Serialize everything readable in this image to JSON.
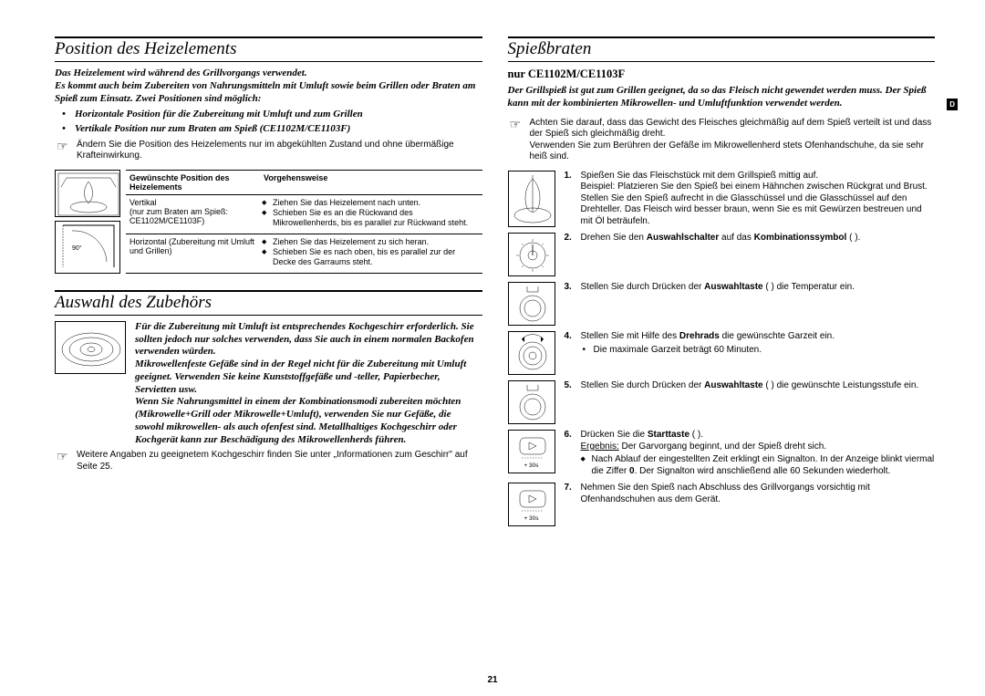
{
  "pageNumber": "21",
  "langBadge": "D",
  "left": {
    "section1": {
      "title": "Position des Heizelements",
      "intro": "Das Heizelement wird während des Grillvorgangs verwendet.\nEs kommt auch beim Zubereiten von Nahrungsmitteln mit Umluft sowie beim Grillen oder Braten am Spieß zum Einsatz. Zwei Positionen sind möglich:",
      "bullets": [
        "Horizontale Position für die Zubereitung mit Umluft und zum Grillen",
        "Vertikale Position nur zum Braten am Spieß (CE1102M/CE1103F)"
      ],
      "handNote": "Ändern Sie die Position des Heizelements nur im abgekühlten Zustand und ohne übermäßige Krafteinwirkung.",
      "table": {
        "headers": [
          "Gewünschte Position des Heizelements",
          "Vorgehensweise"
        ],
        "rows": [
          {
            "c1": "Vertikal\n(nur zum Braten am Spieß: CE1102M/CE1103F)",
            "c2": [
              "Ziehen Sie das Heizelement nach unten.",
              "Schieben Sie es an die Rückwand des Mikrowellenherds, bis es parallel zur Rückwand steht."
            ]
          },
          {
            "c1": "Horizontal (Zubereitung mit Umluft und Grillen)",
            "c2": [
              "Ziehen Sie das Heizelement zu sich heran.",
              "Schieben Sie es nach oben, bis es parallel zur der Decke des Garraums steht."
            ]
          }
        ]
      },
      "ill_angle": "90°"
    },
    "section2": {
      "title": "Auswahl des Zubehörs",
      "text": "Für die Zubereitung mit Umluft ist entsprechendes Kochgeschirr erforderlich. Sie sollten jedoch nur solches verwenden, dass Sie auch in einem normalen Backofen verwenden würden.\nMikrowellenfeste Gefäße sind in der Regel nicht für die Zubereitung mit Umluft geeignet. Verwenden Sie keine Kunststoffgefäße und -teller, Papierbecher, Servietten usw.\nWenn Sie Nahrungsmittel in einem der Kombinationsmodi zubereiten möchten (Mikrowelle+Grill oder Mikrowelle+Umluft), verwenden Sie nur Gefäße, die sowohl mikrowellen- als auch ofenfest sind. Metallhaltiges Kochgeschirr oder Kochgerät kann zur Beschädigung des Mikrowellenherds führen.",
      "handNote": "Weitere Angaben zu geeignetem Kochgeschirr finden Sie unter „Informationen zum Geschirr\" auf Seite 25."
    }
  },
  "right": {
    "title": "Spießbraten",
    "subtitle": "nur CE1102M/CE1103F",
    "intro": "Der Grillspieß ist gut zum Grillen geeignet, da so das Fleisch nicht gewendet werden muss. Der Spieß kann mit der kombinierten Mikrowellen- und Umluftfunktion verwendet werden.",
    "handNote": "Achten Sie darauf, dass das Gewicht des Fleisches gleichmäßig auf dem Spieß verteilt ist und dass der Spieß sich gleichmäßig dreht.\nVerwenden Sie zum Berühren der Gefäße im Mikrowellenherd stets Ofenhandschuhe, da sie sehr heiß sind.",
    "steps": [
      {
        "n": "1.",
        "text": "Spießen Sie das Fleischstück mit dem Grillspieß mittig auf.\nBeispiel: Platzieren Sie den Spieß bei einem Hähnchen zwischen Rückgrat und Brust.\nStellen Sie den Spieß aufrecht in die Glasschüssel und die Glasschüssel auf den Drehteller. Das Fleisch wird besser braun, wenn Sie es mit Gewürzen bestreuen und mit Öl beträufeln.",
        "underline": "Beispiel:"
      },
      {
        "n": "2.",
        "html": "Drehen Sie den <b>Auswahlschalter</b> auf das <b>Kombinationssymbol</b> (    )."
      },
      {
        "n": "3.",
        "html": "Stellen Sie durch Drücken der <b>Auswahltaste</b> (   ) die Temperatur ein."
      },
      {
        "n": "4.",
        "html": "Stellen Sie mit Hilfe des <b>Drehrads</b> die gewünschte Garzeit ein.",
        "sub": [
          "Die maximale Garzeit beträgt 60 Minuten."
        ]
      },
      {
        "n": "5.",
        "html": "Stellen Sie durch Drücken der <b>Auswahltaste</b> (   ) die gewünschte Leistungsstufe ein."
      },
      {
        "n": "6.",
        "html": "Drücken Sie die <b>Starttaste</b> (   ).",
        "underline": "Ergebnis:",
        "after": " Der Garvorgang beginnt, und der Spieß dreht sich.",
        "sub2": [
          "Nach Ablauf der eingestellten Zeit erklingt ein Signalton. In der Anzeige blinkt viermal die Ziffer <b>0</b>. Der Signalton wird anschließend alle 60 Sekunden wiederholt."
        ]
      },
      {
        "n": "7.",
        "text": "Nehmen Sie den Spieß nach Abschluss des Grillvorgangs vorsichtig mit Ofenhandschuhen aus dem Gerät."
      }
    ],
    "plus30": "+ 30s"
  }
}
